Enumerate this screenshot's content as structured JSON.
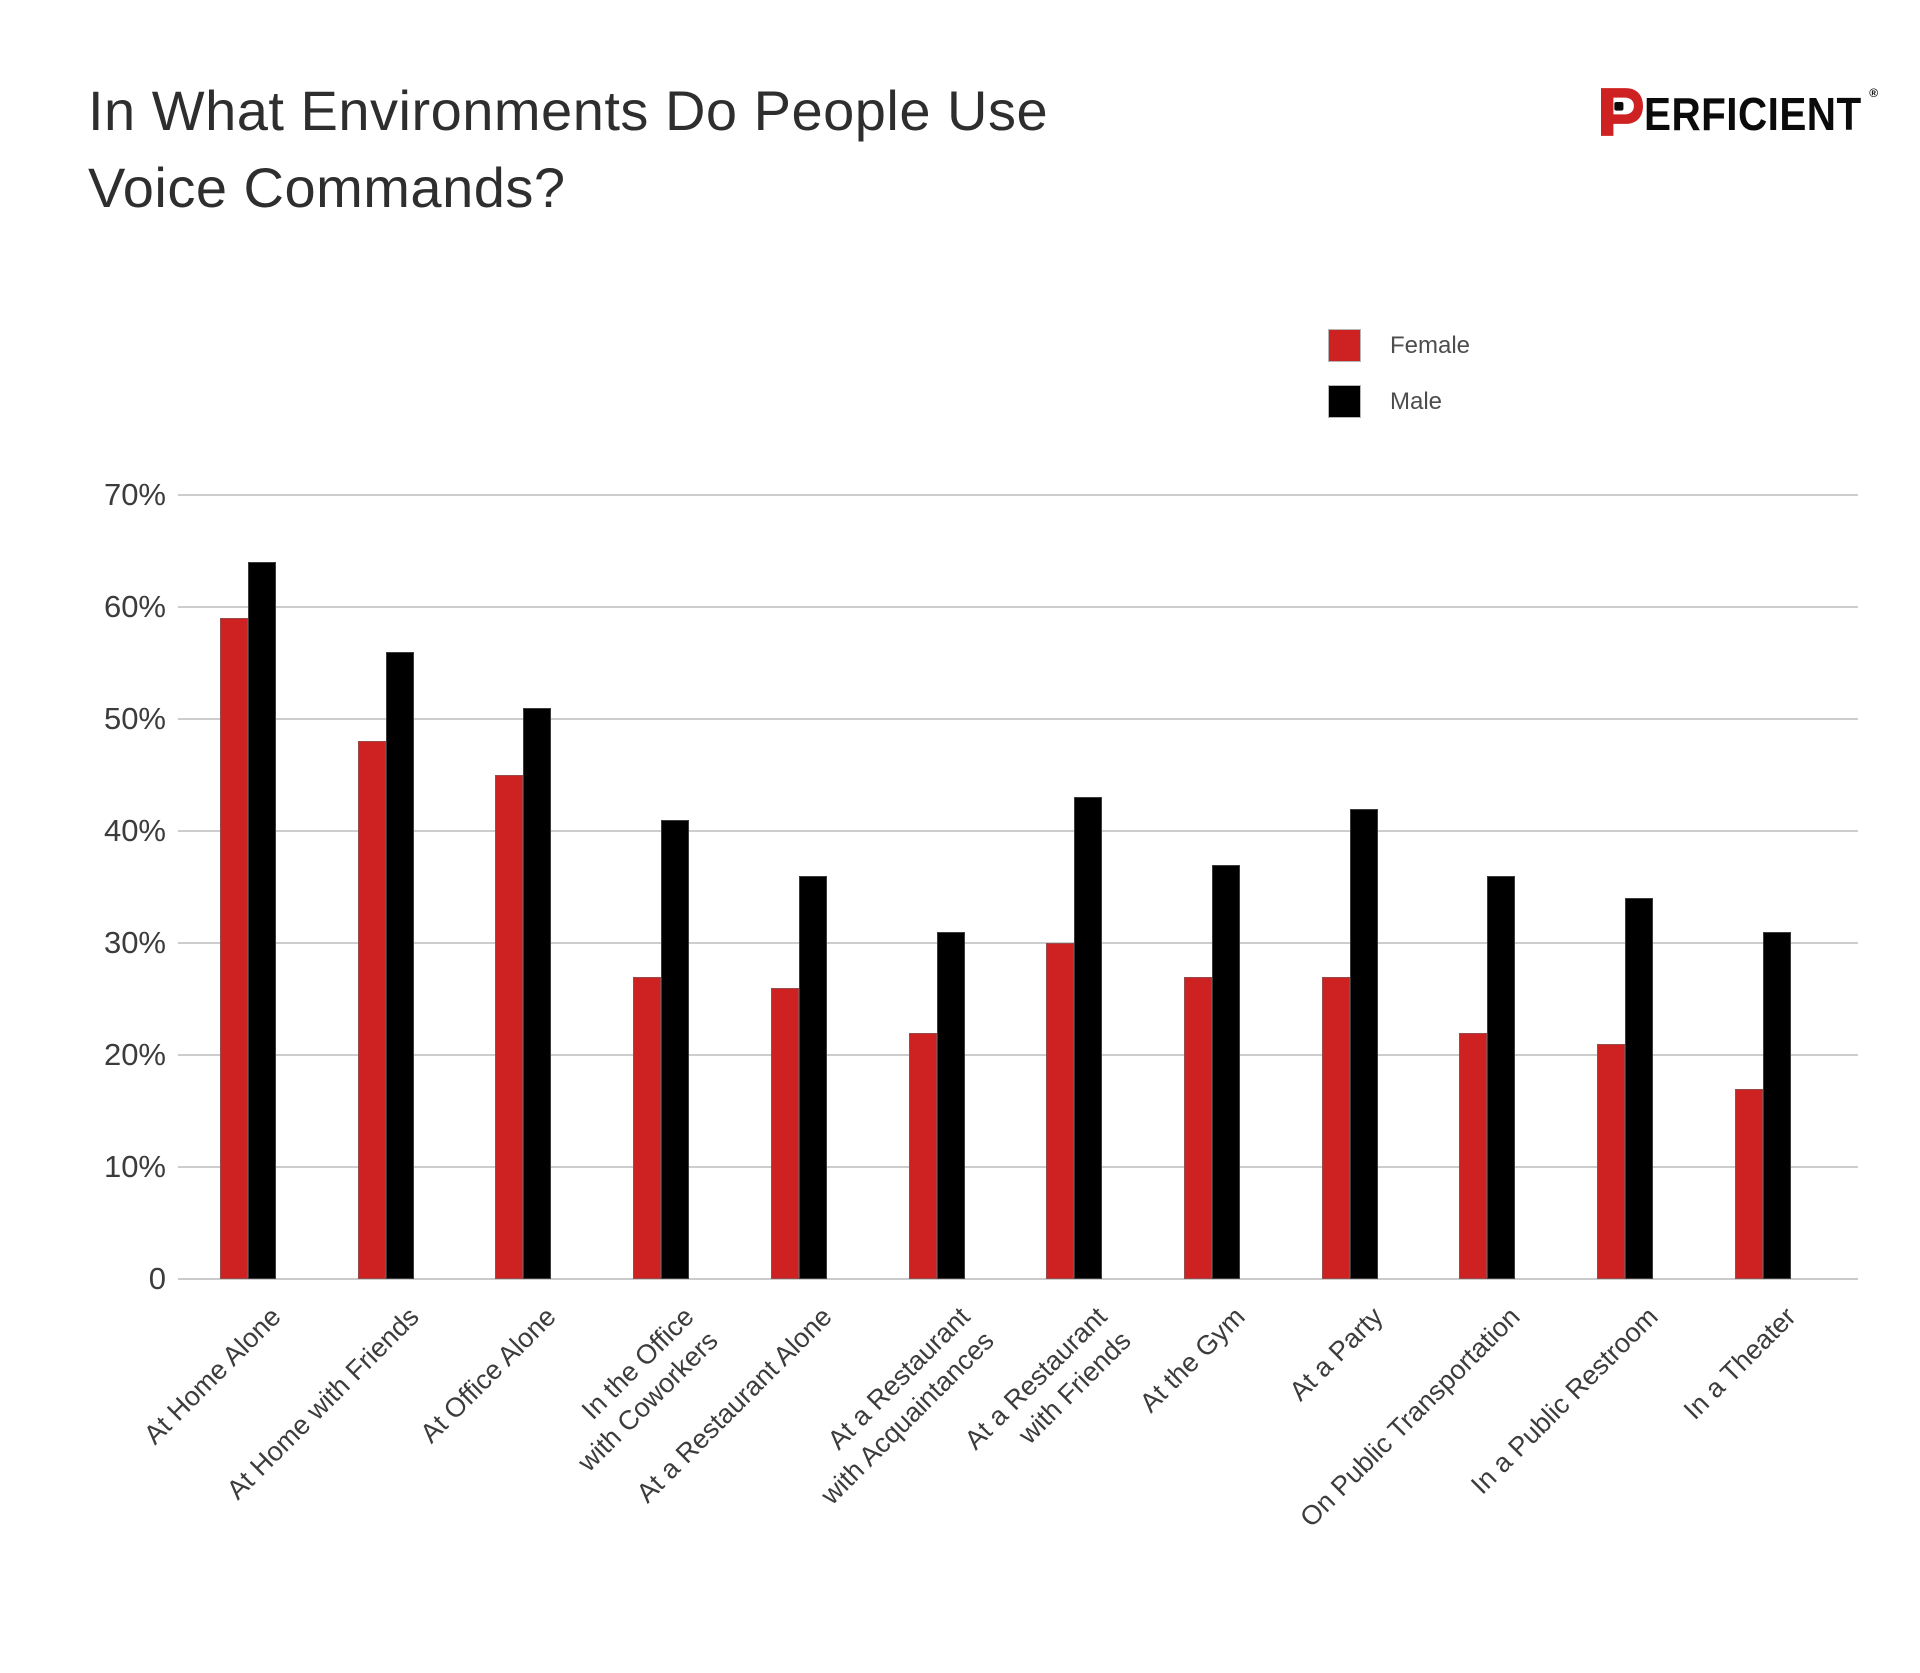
{
  "page": {
    "background": "#ffffff"
  },
  "header": {
    "title_lines": [
      "In What Environments Do People Use",
      "Voice Commands?"
    ],
    "logo": {
      "text": "ERFICIENT",
      "registered_mark": "®",
      "red": "#CE2121",
      "black": "#0b0b0b"
    }
  },
  "legend": {
    "items": [
      {
        "label": "Female",
        "color": "#CE2121"
      },
      {
        "label": "Male",
        "color": "#000000"
      }
    ]
  },
  "chart_data": {
    "type": "bar",
    "title": "In What Environments Do People Use Voice Commands?",
    "categories": [
      "At Home Alone",
      "At Home with Friends",
      "At Office Alone",
      "In the Office\nwith Coworkers",
      "At a Restaurant Alone",
      "At a Restaurant\nwith Acquaintances",
      "At a Restaurant\nwith Friends",
      "At the Gym",
      "At a Party",
      "On Public Transportation",
      "In a Public Restroom",
      "In a Theater"
    ],
    "series": [
      {
        "name": "Female",
        "color": "#CE2121",
        "values": [
          59,
          48,
          45,
          27,
          26,
          22,
          30,
          27,
          27,
          22,
          21,
          17
        ]
      },
      {
        "name": "Male",
        "color": "#000000",
        "values": [
          64,
          56,
          51,
          41,
          36,
          31,
          43,
          37,
          42,
          36,
          34,
          31
        ]
      }
    ],
    "y_axis": {
      "unit": "%",
      "ticks": [
        "70%",
        "60%",
        "50%",
        "40%",
        "30%",
        "20%",
        "10%",
        "0"
      ],
      "tick_values": [
        70,
        60,
        50,
        40,
        30,
        20,
        10,
        0
      ],
      "min": 0,
      "max": 70,
      "grid": true
    },
    "x_axis": {
      "label_rotation_deg": -45
    },
    "legend_position": "top-right"
  }
}
